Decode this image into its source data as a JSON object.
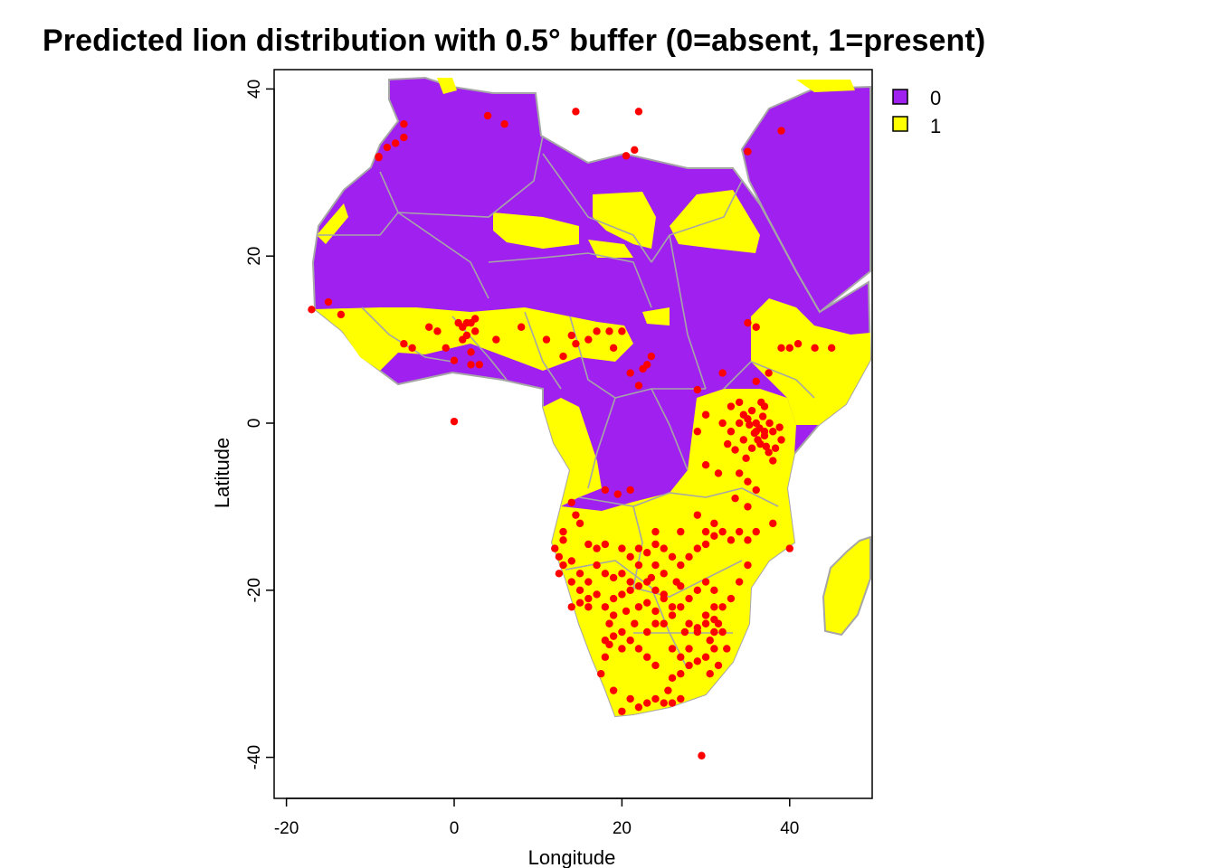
{
  "title": "Predicted lion distribution with 0.5° buffer (0=absent, 1=present)",
  "x_axis": {
    "title": "Longitude",
    "ticks": [
      -20,
      0,
      20,
      40
    ],
    "tick_labels": [
      "-20",
      "0",
      "20",
      "40"
    ]
  },
  "y_axis": {
    "title": "Latitude",
    "ticks": [
      40,
      20,
      0,
      -20,
      -40
    ],
    "tick_labels": [
      "40",
      "20",
      "0",
      "-20",
      "-40"
    ]
  },
  "extent": {
    "lon": [
      -21.5,
      50
    ],
    "lat": [
      -45,
      42
    ]
  },
  "legend": {
    "placement": "top-right outside",
    "items": [
      {
        "label": "0",
        "color": "#a020f0"
      },
      {
        "label": "1",
        "color": "#ffff00"
      }
    ]
  },
  "colors": {
    "absent": "#a020f0",
    "present": "#ffff00",
    "points": "#ff0000",
    "borders": "#a6a6a6"
  },
  "occurrence_points": [
    [
      -17,
      13.6
    ],
    [
      -15,
      14.5
    ],
    [
      -13.5,
      13
    ],
    [
      -6,
      9.5
    ],
    [
      -5,
      9
    ],
    [
      -3,
      11.5
    ],
    [
      -2,
      11
    ],
    [
      -1,
      9
    ],
    [
      0,
      7.5
    ],
    [
      1,
      10
    ],
    [
      0.5,
      12
    ],
    [
      1,
      11.5
    ],
    [
      1.5,
      12
    ],
    [
      2,
      12
    ],
    [
      2.5,
      11
    ],
    [
      2.5,
      12.5
    ],
    [
      1.5,
      10.5
    ],
    [
      2,
      8.5
    ],
    [
      2,
      7
    ],
    [
      3,
      7
    ],
    [
      5,
      10
    ],
    [
      8,
      11.5
    ],
    [
      11,
      10
    ],
    [
      13,
      8
    ],
    [
      14.5,
      9.5
    ],
    [
      14,
      10.5
    ],
    [
      16,
      10
    ],
    [
      17,
      11
    ],
    [
      18.5,
      11
    ],
    [
      19,
      9
    ],
    [
      20,
      11
    ],
    [
      21,
      6
    ],
    [
      22.5,
      6.5
    ],
    [
      23,
      7
    ],
    [
      23.5,
      8
    ],
    [
      22,
      4.5
    ],
    [
      29,
      4
    ],
    [
      32,
      6
    ],
    [
      35,
      12
    ],
    [
      36,
      11.5
    ],
    [
      39,
      9
    ],
    [
      40,
      9
    ],
    [
      41,
      9.5
    ],
    [
      43,
      9
    ],
    [
      45,
      9
    ],
    [
      37.5,
      6
    ],
    [
      36,
      5
    ],
    [
      33,
      2
    ],
    [
      34,
      2.5
    ],
    [
      35,
      0.5
    ],
    [
      36,
      -1
    ],
    [
      36.5,
      -2.5
    ],
    [
      37,
      -1.5
    ],
    [
      34.5,
      -2
    ],
    [
      35.5,
      -3
    ],
    [
      37.5,
      -3.5
    ],
    [
      38,
      -4.5
    ],
    [
      36,
      0
    ],
    [
      34.5,
      1
    ],
    [
      37,
      2
    ],
    [
      33,
      -1
    ],
    [
      32,
      0
    ],
    [
      30,
      1
    ],
    [
      29,
      -1
    ],
    [
      30,
      -5
    ],
    [
      31.5,
      -6
    ],
    [
      34,
      -6
    ],
    [
      35,
      -7
    ],
    [
      36,
      -8
    ],
    [
      33.5,
      -9
    ],
    [
      35,
      -10
    ],
    [
      31,
      -12
    ],
    [
      29,
      -11
    ],
    [
      30,
      -13
    ],
    [
      27,
      -13
    ],
    [
      24,
      -13
    ],
    [
      21,
      -8
    ],
    [
      19.5,
      -8.5
    ],
    [
      18,
      -8
    ],
    [
      14,
      -9.5
    ],
    [
      14.5,
      -11
    ],
    [
      15,
      -12
    ],
    [
      13,
      -13
    ],
    [
      12.5,
      -16
    ],
    [
      13,
      -17
    ],
    [
      14,
      -16.5
    ],
    [
      15,
      -18
    ],
    [
      16,
      -19
    ],
    [
      17,
      -17
    ],
    [
      18,
      -18
    ],
    [
      19,
      -18.5
    ],
    [
      20,
      -18
    ],
    [
      21,
      -19
    ],
    [
      22,
      -19.5
    ],
    [
      23,
      -19
    ],
    [
      23.5,
      -18.5
    ],
    [
      24,
      -20
    ],
    [
      25,
      -20.5
    ],
    [
      23,
      -21.5
    ],
    [
      22,
      -22
    ],
    [
      24,
      -22.5
    ],
    [
      25,
      -24
    ],
    [
      26,
      -23
    ],
    [
      27.5,
      -25
    ],
    [
      28,
      -24
    ],
    [
      29,
      -24.5
    ],
    [
      30,
      -23
    ],
    [
      31,
      -23.5
    ],
    [
      31.5,
      -24
    ],
    [
      31,
      -25
    ],
    [
      30.5,
      -26
    ],
    [
      31,
      -27
    ],
    [
      30,
      -28
    ],
    [
      29,
      -28.5
    ],
    [
      28,
      -29
    ],
    [
      27,
      -30
    ],
    [
      26,
      -30.5
    ],
    [
      25.5,
      -32
    ],
    [
      24,
      -33
    ],
    [
      23,
      -33.5
    ],
    [
      22,
      -34
    ],
    [
      20,
      -34.5
    ],
    [
      21,
      -33
    ],
    [
      19,
      -32
    ],
    [
      17.5,
      -30
    ],
    [
      18,
      -28
    ],
    [
      18.5,
      -26.5
    ],
    [
      20,
      -25
    ],
    [
      21,
      -26
    ],
    [
      20,
      -27
    ],
    [
      21.5,
      -24
    ],
    [
      19,
      -23
    ],
    [
      18,
      -22
    ],
    [
      16,
      -22
    ],
    [
      15,
      -20
    ],
    [
      14,
      -19
    ],
    [
      12.5,
      -18
    ],
    [
      12,
      -15
    ],
    [
      13,
      -14
    ],
    [
      16,
      -14.5
    ],
    [
      17,
      -15
    ],
    [
      18,
      -14.5
    ],
    [
      20,
      -15
    ],
    [
      21,
      -16
    ],
    [
      22,
      -15
    ],
    [
      23,
      -15.5
    ],
    [
      24,
      -14.5
    ],
    [
      25,
      -15
    ],
    [
      26,
      -16
    ],
    [
      27,
      -17
    ],
    [
      28,
      -16
    ],
    [
      29,
      -15
    ],
    [
      30,
      -14.5
    ],
    [
      31,
      -13.5
    ],
    [
      32,
      -13
    ],
    [
      33,
      -14
    ],
    [
      34,
      -13
    ],
    [
      35,
      -14
    ],
    [
      36,
      -13
    ],
    [
      38,
      -12
    ],
    [
      40,
      -15
    ],
    [
      35,
      -17
    ],
    [
      34,
      -19
    ],
    [
      33,
      -21
    ],
    [
      32,
      -22
    ],
    [
      31,
      -20
    ],
    [
      30,
      -19
    ],
    [
      29,
      -20
    ],
    [
      28,
      -21
    ],
    [
      27,
      -22
    ],
    [
      26,
      -22
    ],
    [
      25,
      -21
    ],
    [
      24,
      -24
    ],
    [
      23,
      -25
    ],
    [
      22,
      -27
    ],
    [
      23,
      -28
    ],
    [
      24,
      -29
    ],
    [
      26,
      -27
    ],
    [
      27,
      -28
    ],
    [
      28,
      -27
    ],
    [
      29,
      -25
    ],
    [
      30,
      -24
    ],
    [
      31,
      -22
    ],
    [
      32,
      -25
    ],
    [
      32.5,
      -27
    ],
    [
      31.5,
      -29
    ],
    [
      30.5,
      -30
    ],
    [
      25,
      -33.5
    ],
    [
      26,
      -33.5
    ],
    [
      27,
      -33
    ],
    [
      18,
      -26
    ],
    [
      19,
      -25.5
    ],
    [
      18.5,
      -24
    ],
    [
      20.5,
      -22.5
    ],
    [
      26.5,
      -19
    ],
    [
      27,
      -19.5
    ],
    [
      25,
      -18
    ],
    [
      24,
      -17
    ],
    [
      22,
      -17
    ],
    [
      21,
      -20
    ],
    [
      20,
      -20.5
    ],
    [
      19,
      -21
    ],
    [
      17,
      -20.5
    ],
    [
      16,
      -21
    ],
    [
      15,
      -21.5
    ],
    [
      14,
      -22
    ],
    [
      -9,
      31.8
    ],
    [
      -7,
      33.5
    ],
    [
      -6,
      34.2
    ],
    [
      -6,
      35.8
    ],
    [
      4,
      36.8
    ],
    [
      6,
      35.8
    ],
    [
      14.5,
      37.3
    ],
    [
      22,
      37.3
    ],
    [
      21.5,
      32.7
    ],
    [
      20.5,
      32
    ],
    [
      35,
      32.5
    ],
    [
      39,
      35
    ],
    [
      29.5,
      -39.8
    ],
    [
      0,
      0.2
    ],
    [
      -9,
      31.9
    ],
    [
      -8,
      33
    ],
    [
      37,
      -1
    ],
    [
      36.2,
      -2
    ],
    [
      35.8,
      -1.2
    ],
    [
      37.2,
      -2.8
    ],
    [
      38.3,
      -3
    ],
    [
      36.8,
      0.8
    ],
    [
      35.5,
      1.5
    ],
    [
      34,
      0
    ],
    [
      38,
      -1
    ],
    [
      39,
      -2
    ],
    [
      34.8,
      -4.2
    ],
    [
      33.5,
      -3.2
    ],
    [
      32.6,
      -2.5
    ],
    [
      37.6,
      0
    ],
    [
      36.4,
      -0.6
    ],
    [
      35.2,
      -0.2
    ],
    [
      38.8,
      -0.5
    ],
    [
      36.6,
      2.5
    ]
  ]
}
